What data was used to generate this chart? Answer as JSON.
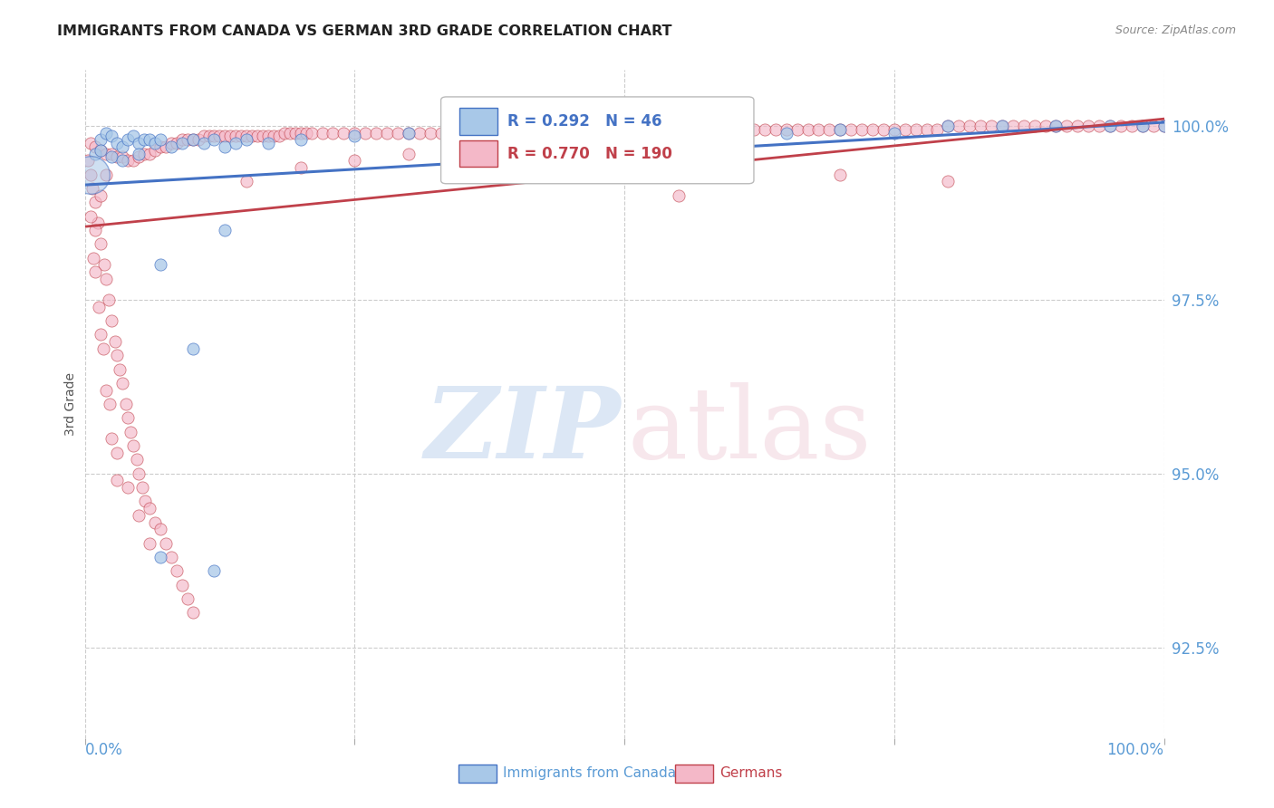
{
  "title": "IMMIGRANTS FROM CANADA VS GERMAN 3RD GRADE CORRELATION CHART",
  "source": "Source: ZipAtlas.com",
  "ylabel": "3rd Grade",
  "ytick_vals": [
    92.5,
    95.0,
    97.5,
    100.0
  ],
  "xmin": 0.0,
  "xmax": 100.0,
  "ymin": 91.2,
  "ymax": 100.8,
  "canada_color": "#a8c8e8",
  "canada_color_line": "#4472c4",
  "german_color": "#f4b8c8",
  "german_color_line": "#c0404a",
  "canada_R": 0.292,
  "canada_N": 46,
  "german_R": 0.77,
  "german_N": 190,
  "canada_line_x": [
    0,
    100
  ],
  "canada_line_y": [
    99.15,
    100.05
  ],
  "german_line_x": [
    0,
    100
  ],
  "german_line_y": [
    98.55,
    100.1
  ],
  "canada_points": [
    [
      1.5,
      99.8
    ],
    [
      2.0,
      99.9
    ],
    [
      2.5,
      99.85
    ],
    [
      3.0,
      99.75
    ],
    [
      3.5,
      99.7
    ],
    [
      4.0,
      99.8
    ],
    [
      4.5,
      99.85
    ],
    [
      5.0,
      99.75
    ],
    [
      5.5,
      99.8
    ],
    [
      6.0,
      99.8
    ],
    [
      6.5,
      99.75
    ],
    [
      7.0,
      99.8
    ],
    [
      8.0,
      99.7
    ],
    [
      9.0,
      99.75
    ],
    [
      10.0,
      99.8
    ],
    [
      11.0,
      99.75
    ],
    [
      12.0,
      99.8
    ],
    [
      13.0,
      99.7
    ],
    [
      14.0,
      99.75
    ],
    [
      15.0,
      99.8
    ],
    [
      17.0,
      99.75
    ],
    [
      20.0,
      99.8
    ],
    [
      25.0,
      99.85
    ],
    [
      30.0,
      99.9
    ],
    [
      35.0,
      99.9
    ],
    [
      40.0,
      99.9
    ],
    [
      45.0,
      99.9
    ],
    [
      50.0,
      99.85
    ],
    [
      55.0,
      99.9
    ],
    [
      60.0,
      99.95
    ],
    [
      65.0,
      99.9
    ],
    [
      70.0,
      99.95
    ],
    [
      75.0,
      99.9
    ],
    [
      80.0,
      100.0
    ],
    [
      85.0,
      100.0
    ],
    [
      90.0,
      100.0
    ],
    [
      95.0,
      100.0
    ],
    [
      98.0,
      100.0
    ],
    [
      100.0,
      100.0
    ],
    [
      1.0,
      99.6
    ],
    [
      1.5,
      99.65
    ],
    [
      2.5,
      99.55
    ],
    [
      3.5,
      99.5
    ],
    [
      5.0,
      99.6
    ],
    [
      7.0,
      98.0
    ],
    [
      13.0,
      98.5
    ],
    [
      10.0,
      96.8
    ],
    [
      7.0,
      93.8
    ],
    [
      12.0,
      93.6
    ]
  ],
  "canada_big_outlier_x": 0.5,
  "canada_big_outlier_y": 99.3,
  "german_points": [
    [
      0.5,
      99.75
    ],
    [
      1.0,
      99.7
    ],
    [
      1.5,
      99.65
    ],
    [
      2.0,
      99.6
    ],
    [
      2.5,
      99.6
    ],
    [
      3.0,
      99.55
    ],
    [
      3.5,
      99.55
    ],
    [
      4.0,
      99.5
    ],
    [
      4.5,
      99.5
    ],
    [
      5.0,
      99.55
    ],
    [
      5.5,
      99.6
    ],
    [
      6.0,
      99.6
    ],
    [
      6.5,
      99.65
    ],
    [
      7.0,
      99.7
    ],
    [
      7.5,
      99.7
    ],
    [
      8.0,
      99.75
    ],
    [
      8.5,
      99.75
    ],
    [
      9.0,
      99.8
    ],
    [
      9.5,
      99.8
    ],
    [
      10.0,
      99.8
    ],
    [
      10.5,
      99.8
    ],
    [
      11.0,
      99.85
    ],
    [
      11.5,
      99.85
    ],
    [
      12.0,
      99.85
    ],
    [
      12.5,
      99.85
    ],
    [
      13.0,
      99.85
    ],
    [
      13.5,
      99.85
    ],
    [
      14.0,
      99.85
    ],
    [
      14.5,
      99.85
    ],
    [
      15.0,
      99.85
    ],
    [
      15.5,
      99.85
    ],
    [
      16.0,
      99.85
    ],
    [
      16.5,
      99.85
    ],
    [
      17.0,
      99.85
    ],
    [
      17.5,
      99.85
    ],
    [
      18.0,
      99.85
    ],
    [
      18.5,
      99.9
    ],
    [
      19.0,
      99.9
    ],
    [
      19.5,
      99.9
    ],
    [
      20.0,
      99.9
    ],
    [
      20.5,
      99.9
    ],
    [
      21.0,
      99.9
    ],
    [
      22.0,
      99.9
    ],
    [
      23.0,
      99.9
    ],
    [
      24.0,
      99.9
    ],
    [
      25.0,
      99.9
    ],
    [
      26.0,
      99.9
    ],
    [
      27.0,
      99.9
    ],
    [
      28.0,
      99.9
    ],
    [
      29.0,
      99.9
    ],
    [
      30.0,
      99.9
    ],
    [
      31.0,
      99.9
    ],
    [
      32.0,
      99.9
    ],
    [
      33.0,
      99.9
    ],
    [
      34.0,
      99.9
    ],
    [
      35.0,
      99.9
    ],
    [
      36.0,
      99.9
    ],
    [
      37.0,
      99.9
    ],
    [
      38.0,
      99.9
    ],
    [
      39.0,
      99.9
    ],
    [
      40.0,
      99.9
    ],
    [
      41.0,
      99.9
    ],
    [
      42.0,
      99.9
    ],
    [
      43.0,
      99.9
    ],
    [
      44.0,
      99.9
    ],
    [
      45.0,
      99.9
    ],
    [
      46.0,
      99.9
    ],
    [
      47.0,
      99.9
    ],
    [
      48.0,
      99.9
    ],
    [
      49.0,
      99.9
    ],
    [
      50.0,
      99.9
    ],
    [
      51.0,
      99.9
    ],
    [
      52.0,
      99.9
    ],
    [
      53.0,
      99.9
    ],
    [
      54.0,
      99.9
    ],
    [
      55.0,
      99.9
    ],
    [
      56.0,
      99.9
    ],
    [
      57.0,
      99.9
    ],
    [
      58.0,
      99.9
    ],
    [
      59.0,
      99.9
    ],
    [
      60.0,
      99.95
    ],
    [
      61.0,
      99.95
    ],
    [
      62.0,
      99.95
    ],
    [
      63.0,
      99.95
    ],
    [
      64.0,
      99.95
    ],
    [
      65.0,
      99.95
    ],
    [
      66.0,
      99.95
    ],
    [
      67.0,
      99.95
    ],
    [
      68.0,
      99.95
    ],
    [
      69.0,
      99.95
    ],
    [
      70.0,
      99.95
    ],
    [
      71.0,
      99.95
    ],
    [
      72.0,
      99.95
    ],
    [
      73.0,
      99.95
    ],
    [
      74.0,
      99.95
    ],
    [
      75.0,
      99.95
    ],
    [
      76.0,
      99.95
    ],
    [
      77.0,
      99.95
    ],
    [
      78.0,
      99.95
    ],
    [
      79.0,
      99.95
    ],
    [
      80.0,
      100.0
    ],
    [
      81.0,
      100.0
    ],
    [
      82.0,
      100.0
    ],
    [
      83.0,
      100.0
    ],
    [
      84.0,
      100.0
    ],
    [
      85.0,
      100.0
    ],
    [
      86.0,
      100.0
    ],
    [
      87.0,
      100.0
    ],
    [
      88.0,
      100.0
    ],
    [
      89.0,
      100.0
    ],
    [
      90.0,
      100.0
    ],
    [
      91.0,
      100.0
    ],
    [
      92.0,
      100.0
    ],
    [
      93.0,
      100.0
    ],
    [
      94.0,
      100.0
    ],
    [
      95.0,
      100.0
    ],
    [
      96.0,
      100.0
    ],
    [
      97.0,
      100.0
    ],
    [
      98.0,
      100.0
    ],
    [
      99.0,
      100.0
    ],
    [
      100.0,
      100.0
    ],
    [
      0.3,
      99.5
    ],
    [
      0.5,
      99.3
    ],
    [
      0.7,
      99.1
    ],
    [
      1.0,
      98.9
    ],
    [
      1.2,
      98.6
    ],
    [
      1.5,
      98.3
    ],
    [
      1.8,
      98.0
    ],
    [
      2.0,
      97.8
    ],
    [
      2.2,
      97.5
    ],
    [
      2.5,
      97.2
    ],
    [
      2.8,
      96.9
    ],
    [
      3.0,
      96.7
    ],
    [
      3.2,
      96.5
    ],
    [
      3.5,
      96.3
    ],
    [
      3.8,
      96.0
    ],
    [
      4.0,
      95.8
    ],
    [
      4.2,
      95.6
    ],
    [
      4.5,
      95.4
    ],
    [
      4.8,
      95.2
    ],
    [
      5.0,
      95.0
    ],
    [
      5.3,
      94.8
    ],
    [
      5.6,
      94.6
    ],
    [
      6.0,
      94.5
    ],
    [
      6.5,
      94.3
    ],
    [
      7.0,
      94.2
    ],
    [
      7.5,
      94.0
    ],
    [
      8.0,
      93.8
    ],
    [
      8.5,
      93.6
    ],
    [
      9.0,
      93.4
    ],
    [
      9.5,
      93.2
    ],
    [
      10.0,
      93.0
    ],
    [
      0.8,
      98.1
    ],
    [
      1.3,
      97.4
    ],
    [
      1.7,
      96.8
    ],
    [
      2.3,
      96.0
    ],
    [
      3.0,
      95.3
    ],
    [
      4.0,
      94.8
    ],
    [
      5.0,
      94.4
    ],
    [
      6.0,
      94.0
    ],
    [
      2.0,
      99.3
    ],
    [
      1.5,
      99.0
    ],
    [
      1.0,
      98.5
    ],
    [
      70.0,
      99.3
    ],
    [
      80.0,
      99.2
    ],
    [
      55.0,
      99.0
    ],
    [
      15.0,
      99.2
    ],
    [
      20.0,
      99.4
    ],
    [
      25.0,
      99.5
    ],
    [
      30.0,
      99.6
    ],
    [
      40.0,
      99.7
    ],
    [
      50.0,
      99.75
    ],
    [
      0.5,
      98.7
    ],
    [
      1.0,
      97.9
    ],
    [
      1.5,
      97.0
    ],
    [
      2.0,
      96.2
    ],
    [
      2.5,
      95.5
    ],
    [
      3.0,
      94.9
    ]
  ],
  "watermark_zip": "ZIP",
  "watermark_atlas": "atlas",
  "legend_canada_label": "Immigrants from Canada",
  "legend_german_label": "Germans",
  "background_color": "#ffffff",
  "grid_color": "#cccccc",
  "tick_color": "#5b9bd5",
  "title_color": "#222222",
  "source_color": "#888888"
}
